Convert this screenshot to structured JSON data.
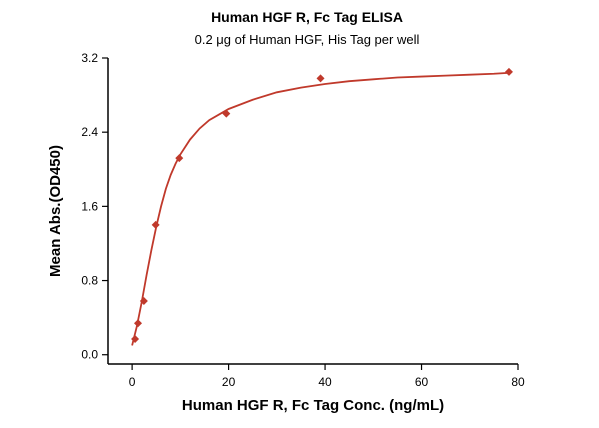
{
  "colors": {
    "series": "#c0392b",
    "axis": "#000000"
  },
  "chart_data": {
    "type": "scatter",
    "title": "Human HGF R, Fc Tag ELISA",
    "subtitle": "0.2 μg of Human HGF, His Tag per well",
    "xlabel": "Human HGF R, Fc Tag Conc. (ng/mL)",
    "ylabel": "Mean Abs.(OD450)",
    "xlim": [
      -5,
      80
    ],
    "ylim": [
      -0.1,
      3.2
    ],
    "xticks": [
      0,
      20,
      40,
      60,
      80
    ],
    "xtick_labels": [
      "0",
      "20",
      "40",
      "60",
      "80"
    ],
    "yticks": [
      0.0,
      0.8,
      1.6,
      2.4,
      3.2
    ],
    "ytick_labels": [
      "0.0",
      "0.8",
      "1.6",
      "2.4",
      "3.2"
    ],
    "grid": false,
    "series": [
      {
        "marker": "diamond",
        "x": [
          0.61,
          1.22,
          2.44,
          4.88,
          9.77,
          19.53,
          39.06,
          78.13
        ],
        "y": [
          0.17,
          0.34,
          0.58,
          1.4,
          2.12,
          2.6,
          2.98,
          3.05
        ]
      }
    ],
    "fit_curve": {
      "type": "line",
      "x": [
        0,
        1,
        2,
        3,
        4,
        5,
        6,
        7,
        8,
        9,
        10,
        12,
        14,
        16,
        18,
        20,
        25,
        30,
        35,
        40,
        45,
        50,
        55,
        60,
        65,
        70,
        75,
        78
      ],
      "y": [
        0.1,
        0.31,
        0.57,
        0.86,
        1.13,
        1.38,
        1.6,
        1.79,
        1.94,
        2.06,
        2.16,
        2.32,
        2.44,
        2.53,
        2.59,
        2.65,
        2.75,
        2.83,
        2.88,
        2.92,
        2.95,
        2.97,
        2.99,
        3.0,
        3.01,
        3.02,
        3.03,
        3.04
      ]
    }
  }
}
